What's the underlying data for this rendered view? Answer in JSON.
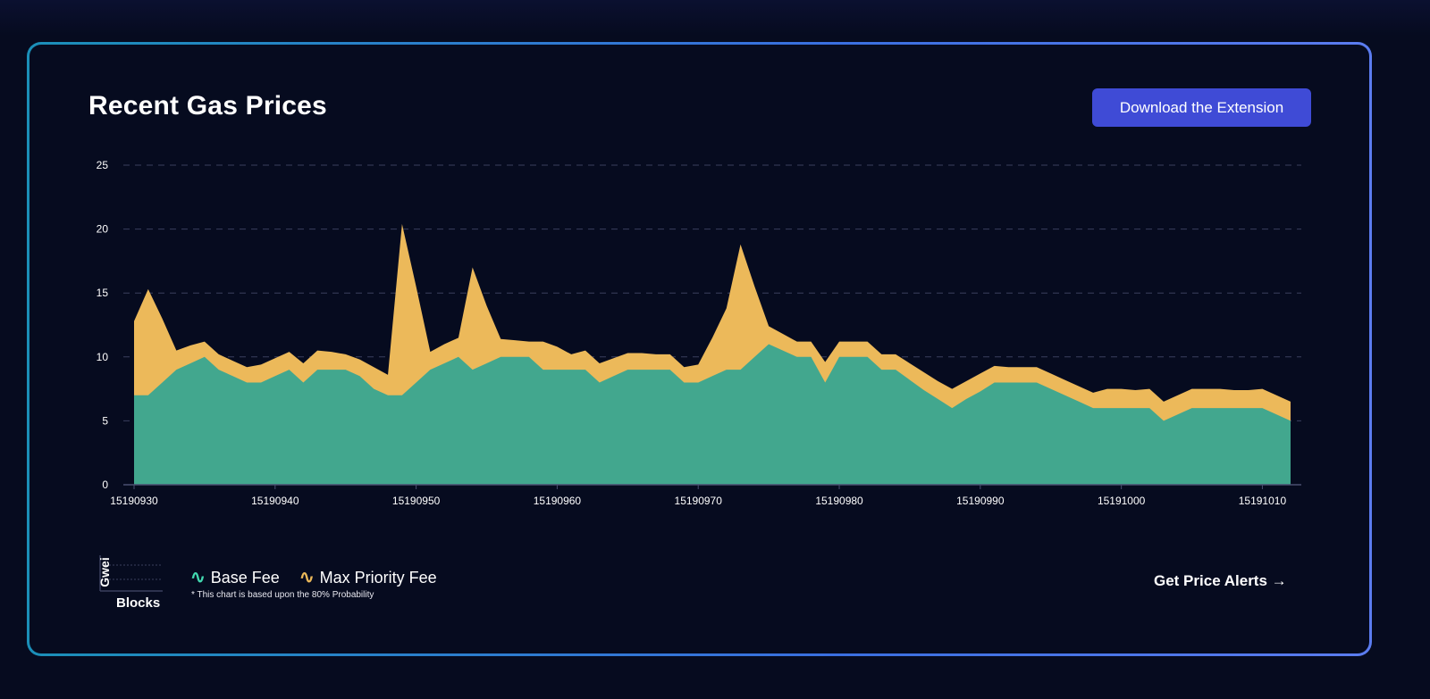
{
  "header": {
    "title": "Recent Gas Prices",
    "download_button": "Download the Extension"
  },
  "legend": {
    "axes_y": "Gwei",
    "axes_x": "Blocks",
    "items": [
      {
        "label": "Base Fee",
        "icon": "wave-icon",
        "color": "#42d9b0"
      },
      {
        "label": "Max Priority Fee",
        "icon": "wave-icon",
        "color": "#ecb95a"
      }
    ],
    "note": "* This chart is based upon the 80% Probability"
  },
  "footer": {
    "alerts_link": "Get Price Alerts",
    "alerts_icon": "arrow-right-icon"
  },
  "colors": {
    "base_fill": "#42a78e",
    "priority_fill": "#ecb95a",
    "background": "#060b1f",
    "button": "#3f4bd6",
    "grid": "#3a3f5e"
  },
  "chart_data": {
    "type": "area",
    "stacked": true,
    "ylim": [
      0,
      25
    ],
    "yticks": [
      0,
      5,
      10,
      15,
      20,
      25
    ],
    "xticks": [
      15190930,
      15190940,
      15190950,
      15190960,
      15190970,
      15190980,
      15190990,
      15191000,
      15191010
    ],
    "grid": "horizontal dashed",
    "x": [
      15190930,
      15190931,
      15190932,
      15190933,
      15190934,
      15190935,
      15190936,
      15190937,
      15190938,
      15190939,
      15190940,
      15190941,
      15190942,
      15190943,
      15190944,
      15190945,
      15190946,
      15190947,
      15190948,
      15190949,
      15190950,
      15190951,
      15190952,
      15190953,
      15190954,
      15190955,
      15190956,
      15190957,
      15190958,
      15190959,
      15190960,
      15190961,
      15190962,
      15190963,
      15190964,
      15190965,
      15190966,
      15190967,
      15190968,
      15190969,
      15190970,
      15190971,
      15190972,
      15190973,
      15190974,
      15190975,
      15190976,
      15190977,
      15190978,
      15190979,
      15190980,
      15190981,
      15190982,
      15190983,
      15190984,
      15190985,
      15190986,
      15190987,
      15190988,
      15190989,
      15190990,
      15190991,
      15190992,
      15190993,
      15190994,
      15190995,
      15190996,
      15190997,
      15190998,
      15190999,
      15191000,
      15191001,
      15191002,
      15191003,
      15191004,
      15191005,
      15191006,
      15191007,
      15191008,
      15191009,
      15191010,
      15191011,
      15191012
    ],
    "series": [
      {
        "name": "Base Fee",
        "values": [
          7,
          7,
          8,
          9,
          9.5,
          10,
          9,
          8.5,
          8,
          8,
          8.5,
          9,
          8,
          9,
          9,
          9,
          8.5,
          7.5,
          7,
          7,
          8,
          9,
          9.5,
          10,
          9,
          9.5,
          10,
          10,
          10,
          9,
          9,
          9,
          9,
          8,
          8.5,
          9,
          9,
          9,
          9,
          8,
          8,
          8.5,
          9,
          9,
          10,
          11,
          10.5,
          10,
          10,
          8,
          10,
          10,
          10,
          9,
          9,
          8.2,
          7.4,
          6.7,
          6,
          6.7,
          7.3,
          8,
          8,
          8,
          8,
          7.5,
          7,
          6.5,
          6,
          6,
          6,
          6,
          6,
          5,
          5.5,
          6,
          6,
          6,
          6,
          6,
          6,
          5.5,
          5
        ]
      },
      {
        "name": "Max Priority Fee",
        "values": [
          5.8,
          8.3,
          5,
          1.5,
          1.4,
          1.2,
          1.2,
          1.2,
          1.2,
          1.4,
          1.4,
          1.4,
          1.5,
          1.5,
          1.4,
          1.2,
          1.3,
          1.7,
          1.6,
          13.4,
          7.5,
          1.4,
          1.5,
          1.5,
          8,
          4.5,
          1.4,
          1.3,
          1.2,
          2.2,
          1.8,
          1.2,
          1.5,
          1.5,
          1.4,
          1.3,
          1.3,
          1.2,
          1.2,
          1.2,
          1.4,
          3,
          4.8,
          9.8,
          5.5,
          1.4,
          1.3,
          1.2,
          1.2,
          1.6,
          1.2,
          1.2,
          1.2,
          1.2,
          1.2,
          1.3,
          1.4,
          1.4,
          1.5,
          1.4,
          1.4,
          1.3,
          1.2,
          1.2,
          1.2,
          1.2,
          1.2,
          1.2,
          1.2,
          1.5,
          1.5,
          1.4,
          1.5,
          1.5,
          1.5,
          1.5,
          1.5,
          1.5,
          1.4,
          1.4,
          1.5,
          1.5,
          1.5
        ]
      }
    ]
  }
}
